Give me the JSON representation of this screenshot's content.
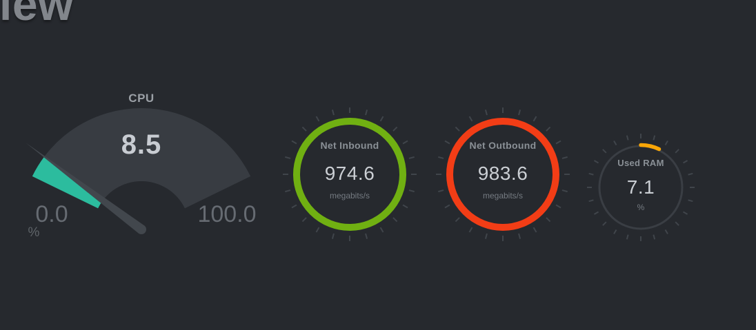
{
  "page": {
    "title_fragment": "iew"
  },
  "colors": {
    "background": "#26292e",
    "gauge_track_gray": "#383c42",
    "cpu_fill_teal": "#2cbc9e",
    "needle_gray": "#42474d",
    "net_inbound_green": "#70b012",
    "net_outbound_red": "#f23d16",
    "used_ram_orange": "#f9a607",
    "used_ram_track": "#3a3e44",
    "tick_gray": "#40454b",
    "value_text": "#c8ccd2",
    "label_text": "#8a9096",
    "scale_text": "#666b72"
  },
  "gauges": {
    "cpu": {
      "label": "CPU",
      "value": 8.5,
      "value_display": "8.5",
      "min": 0,
      "max": 100,
      "min_label": "0.0",
      "max_label": "100.0",
      "unit": "%"
    },
    "net_inbound": {
      "label": "Net Inbound",
      "value": 974.6,
      "value_display": "974.6",
      "unit": "megabits/s",
      "fill_percent": 100
    },
    "net_outbound": {
      "label": "Net Outbound",
      "value": 983.6,
      "value_display": "983.6",
      "unit": "megabits/s",
      "fill_percent": 100
    },
    "used_ram": {
      "label": "Used RAM",
      "value": 7.1,
      "value_display": "7.1",
      "unit": "%",
      "fill_percent": 7.1
    }
  },
  "chart_data": [
    {
      "type": "gauge",
      "style": "meter-needle",
      "title": "CPU",
      "value": 8.5,
      "min": 0,
      "max": 100,
      "unit": "%",
      "fill_color": "#2cbc9e"
    },
    {
      "type": "gauge",
      "style": "circle",
      "title": "Net Inbound",
      "value": 974.6,
      "unit": "megabits/s",
      "ring_color": "#70b012",
      "fill_percent": 100
    },
    {
      "type": "gauge",
      "style": "circle",
      "title": "Net Outbound",
      "value": 983.6,
      "unit": "megabits/s",
      "ring_color": "#f23d16",
      "fill_percent": 100
    },
    {
      "type": "gauge",
      "style": "circle",
      "title": "Used RAM",
      "value": 7.1,
      "unit": "%",
      "ring_color": "#f9a607",
      "fill_percent": 7.1
    }
  ]
}
